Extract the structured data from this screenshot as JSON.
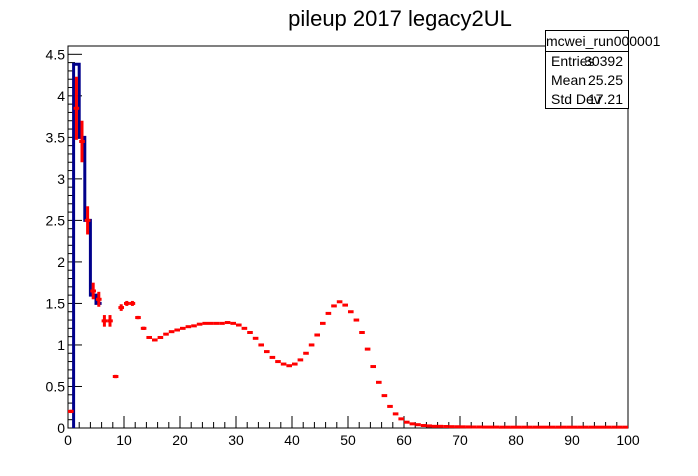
{
  "chart_data": {
    "type": "scatter",
    "title": "pileup 2017 legacy2UL",
    "xlabel": "",
    "ylabel": "",
    "xlim": [
      0,
      100
    ],
    "ylim": [
      0,
      4.6
    ],
    "x_ticks": [
      "0",
      "10",
      "20",
      "30",
      "40",
      "50",
      "60",
      "70",
      "80",
      "90",
      "100"
    ],
    "y_ticks": [
      "0",
      "0.5",
      "1",
      "1.5",
      "2",
      "2.5",
      "3",
      "3.5",
      "4",
      "4.5"
    ],
    "grid": false,
    "stats": {
      "name": "mcwei_run000001",
      "rows": [
        {
          "label": "Entries",
          "value": "30392"
        },
        {
          "label": "Mean",
          "value": "25.25"
        },
        {
          "label": "Std Dev",
          "value": "17.21"
        }
      ]
    },
    "series": [
      {
        "color": "#00008b",
        "style": "histogram-step",
        "x": [
          1.5,
          2.5,
          3.5,
          4.5,
          5.5
        ],
        "values": [
          4.38,
          3.5,
          2.5,
          1.6,
          1.5
        ]
      },
      {
        "color": "#ff0000",
        "style": "markers-with-error-bars",
        "x": [
          0.5,
          1.5,
          2.5,
          3.5,
          4.5,
          5.5,
          6.5,
          7.5,
          8.5,
          9.5,
          10.5,
          11.5,
          12.5,
          13.5,
          14.5,
          15.5,
          16.5,
          17.5,
          18.5,
          19.5,
          20.5,
          21.5,
          22.5,
          23.5,
          24.5,
          25.5,
          26.5,
          27.5,
          28.5,
          29.5,
          30.5,
          31.5,
          32.5,
          33.5,
          34.5,
          35.5,
          36.5,
          37.5,
          38.5,
          39.5,
          40.5,
          41.5,
          42.5,
          43.5,
          44.5,
          45.5,
          46.5,
          47.5,
          48.5,
          49.5,
          50.5,
          51.5,
          52.5,
          53.5,
          54.5,
          55.5,
          56.5,
          57.5,
          58.5,
          59.5,
          60.5,
          61.5,
          62.5,
          63.5,
          64.5,
          65.5,
          66.5,
          67.5,
          68.5,
          69.5,
          70.5,
          71.5,
          72.5,
          73.5,
          74.5,
          75.5,
          76.5,
          77.5,
          78.5,
          79.5,
          80.5,
          81.5,
          82.5,
          83.5,
          84.5,
          85.5,
          86.5,
          87.5,
          88.5,
          89.5,
          90.5,
          91.5,
          92.5,
          93.5,
          94.5,
          95.5,
          96.5,
          97.5,
          98.5,
          99.5
        ],
        "values": [
          0.2,
          3.85,
          3.45,
          2.5,
          1.65,
          1.55,
          1.29,
          1.29,
          0.62,
          1.45,
          1.5,
          1.5,
          1.33,
          1.2,
          1.09,
          1.06,
          1.09,
          1.13,
          1.16,
          1.18,
          1.2,
          1.22,
          1.23,
          1.25,
          1.26,
          1.26,
          1.26,
          1.26,
          1.27,
          1.26,
          1.24,
          1.2,
          1.15,
          1.08,
          1.0,
          0.92,
          0.85,
          0.8,
          0.77,
          0.75,
          0.77,
          0.82,
          0.9,
          1.0,
          1.12,
          1.26,
          1.38,
          1.47,
          1.52,
          1.48,
          1.4,
          1.3,
          1.15,
          0.95,
          0.74,
          0.55,
          0.39,
          0.26,
          0.17,
          0.11,
          0.07,
          0.05,
          0.04,
          0.03,
          0.025,
          0.02,
          0.02,
          0.018,
          0.016,
          0.015,
          0.014,
          0.013,
          0.012,
          0.012,
          0.011,
          0.011,
          0.011,
          0.01,
          0.01,
          0.01,
          0.01,
          0.01,
          0.01,
          0.01,
          0.01,
          0.01,
          0.01,
          0.01,
          0.01,
          0.01,
          0.01,
          0.01,
          0.01,
          0.01,
          0.01,
          0.01,
          0.01,
          0.01,
          0.01,
          0.01
        ],
        "errors": [
          0.02,
          0.38,
          0.25,
          0.17,
          0.1,
          0.09,
          0.07,
          0.07,
          0.02,
          0.04,
          0.03,
          0.03,
          0.02,
          0.02,
          0.01,
          0.01,
          0.01,
          0.01,
          0.01,
          0.01,
          0.01,
          0.01,
          0.01,
          0.01,
          0.01,
          0.01,
          0.01,
          0.01,
          0.01,
          0.01,
          0.01,
          0.01,
          0.01,
          0.01,
          0.01,
          0.01,
          0.01,
          0.01,
          0.01,
          0.01,
          0.01,
          0.01,
          0.01,
          0.01,
          0.01,
          0.01,
          0.01,
          0.01,
          0.01,
          0.01,
          0.01,
          0.01,
          0.01,
          0.01,
          0.01,
          0.01,
          0.01,
          0.01,
          0.01,
          0.01,
          0.01,
          0.01,
          0.01,
          0.01,
          0.01,
          0.01,
          0.01,
          0.01,
          0.01,
          0.01,
          0.01,
          0.01,
          0.01,
          0.01,
          0.01,
          0.01,
          0.01,
          0.01,
          0.01,
          0.01,
          0.01,
          0.01,
          0.01,
          0.01,
          0.01,
          0.01,
          0.01,
          0.01,
          0.01,
          0.01,
          0.01,
          0.01,
          0.01,
          0.01,
          0.01,
          0.01,
          0.01,
          0.01,
          0.01,
          0.01
        ]
      }
    ]
  }
}
